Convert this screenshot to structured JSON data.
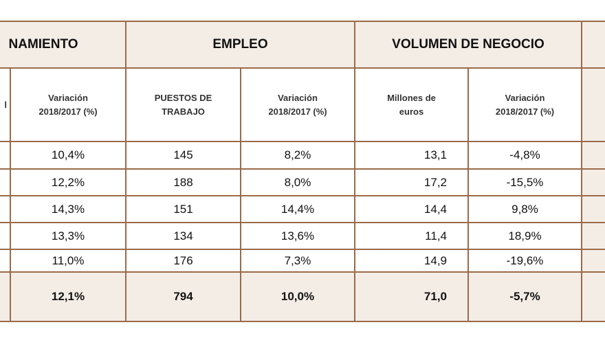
{
  "header": {
    "groups": [
      "NAMIENTO",
      "EMPLEO",
      "VOLUMEN DE NEGOCIO"
    ],
    "columns": [
      "l",
      "Variación 2018/2017 (%)",
      "PUESTOS DE TRABAJO",
      "Variación 2018/2017 (%)",
      "Millones de euros",
      "Variación 2018/2017 (%)"
    ]
  },
  "table": {
    "rows": [
      [
        "10,4%",
        "145",
        "8,2%",
        "13,1",
        "-4,8%"
      ],
      [
        "12,2%",
        "188",
        "8,0%",
        "17,2",
        "-15,5%"
      ],
      [
        "14,3%",
        "151",
        "14,4%",
        "14,4",
        "9,8%"
      ],
      [
        "13,3%",
        "134",
        "13,6%",
        "11,4",
        "18,9%"
      ],
      [
        "11,0%",
        "176",
        "7,3%",
        "14,9",
        "-19,6%"
      ]
    ],
    "total": [
      "12,1%",
      "794",
      "10,0%",
      "71,0",
      "-5,7%"
    ]
  }
}
